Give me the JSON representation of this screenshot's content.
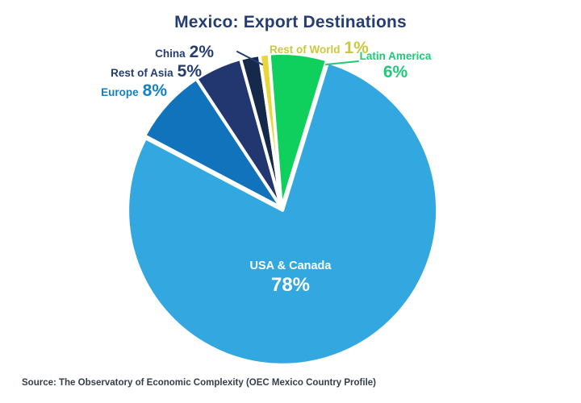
{
  "title": "Mexico: Export Destinations",
  "source": "Source: The Observatory of Economic Complexity (OEC Mexico Country Profile)",
  "colors": {
    "background": "#ffffff",
    "title": "#263d72",
    "source": "#363d49",
    "slice_divider": "#ffffff"
  },
  "chart_data": {
    "type": "pie",
    "title": "Mexico: Export Destinations",
    "legend_position": "none",
    "start_angle_deg": 17,
    "units": "percent",
    "slices": [
      {
        "label": "USA & Canada",
        "value": 78,
        "pct": "78%",
        "color": "#33a7e0",
        "label_color": "#ffffff",
        "exploded": true
      },
      {
        "label": "Europe",
        "value": 8,
        "pct": "8%",
        "color": "#1173bb",
        "label_color": "#1380c7",
        "exploded": false
      },
      {
        "label": "Rest of Asia",
        "value": 5,
        "pct": "5%",
        "color": "#22376f",
        "label_color": "#263d72",
        "exploded": false
      },
      {
        "label": "China",
        "value": 2,
        "pct": "2%",
        "color": "#15294b",
        "label_color": "#263d72",
        "exploded": false
      },
      {
        "label": "Rest of World",
        "value": 1,
        "pct": "1%",
        "color": "#e9d63c",
        "label_color": "#ccc83e",
        "exploded": false
      },
      {
        "label": "Latin America",
        "value": 6,
        "pct": "6%",
        "color": "#10d05d",
        "label_color": "#1fc978",
        "exploded": false
      }
    ],
    "leader_lines": [
      {
        "for": "China",
        "color": "#263d72"
      },
      {
        "for": "Latin America",
        "color": "#1fc978"
      }
    ]
  }
}
